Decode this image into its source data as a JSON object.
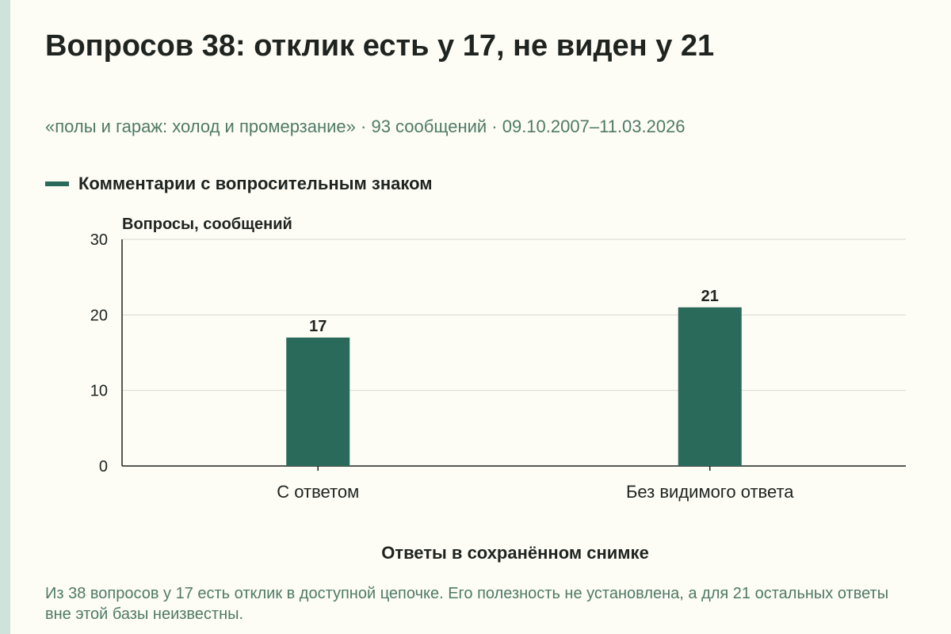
{
  "header": {
    "title": "Вопросов 38: отклик есть у 17, не виден у 21",
    "subtitle": "«полы и гараж: холод и промерзание» · 93 сообщений · 09.10.2007–11.03.2026"
  },
  "legend": {
    "label": "Комментарии с вопросительным знаком",
    "color": "#2a6a5a"
  },
  "footer": {
    "note": "Из 38 вопросов у 17 есть отклик в доступной цепочке. Его полезность не установлена, а для 21 остальных ответы вне этой базы неизвестны."
  },
  "chart_data": {
    "type": "bar",
    "categories": [
      "С ответом",
      "Без видимого ответа"
    ],
    "series": [
      {
        "name": "Комментарии с вопросительным знаком",
        "values": [
          17,
          21
        ],
        "color": "#2a6a5a"
      }
    ],
    "xlabel": "Ответы в сохранённом снимке",
    "ylabel": "Вопросы, сообщений",
    "ylim": [
      0,
      30
    ],
    "yticks": [
      0,
      10,
      20,
      30
    ],
    "grid": true,
    "legend_position": "top-left",
    "data_labels": [
      "17",
      "21"
    ]
  }
}
